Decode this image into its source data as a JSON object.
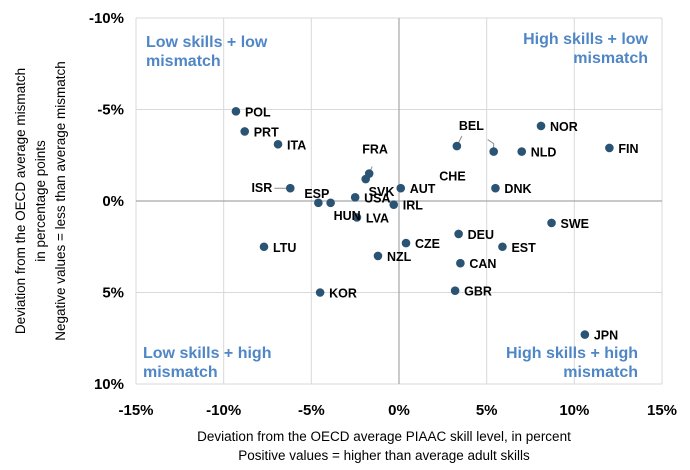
{
  "chart_data": {
    "type": "scatter",
    "title": "",
    "xlabel": [
      "Deviation from the OECD average PIAAC skill level, in percent",
      "Positive values = higher than average adult skills"
    ],
    "ylabel": [
      "Deviation from the OECD average mismatch",
      "in percentage points",
      "Negative values = less  than average mismatch"
    ],
    "xlim": [
      -15,
      15
    ],
    "ylim": [
      -10,
      10
    ],
    "y_inverted": true,
    "grid": true,
    "x_ticks": [
      {
        "value": -15,
        "label": "-15%"
      },
      {
        "value": -10,
        "label": "-10%"
      },
      {
        "value": -5,
        "label": "-5%"
      },
      {
        "value": 0,
        "label": "0%"
      },
      {
        "value": 5,
        "label": "5%"
      },
      {
        "value": 10,
        "label": "10%"
      },
      {
        "value": 15,
        "label": "15%"
      }
    ],
    "y_ticks": [
      {
        "value": -10,
        "label": "-10%"
      },
      {
        "value": -5,
        "label": "-5%"
      },
      {
        "value": 0,
        "label": "0%"
      },
      {
        "value": 5,
        "label": "5%"
      },
      {
        "value": 10,
        "label": "10%"
      }
    ],
    "quadrant_labels": {
      "top_left": [
        "Low skills + low",
        "mismatch"
      ],
      "top_right": [
        "High skills + low",
        "mismatch"
      ],
      "bottom_left": [
        "Low skills + high",
        "mismatch"
      ],
      "bottom_right": [
        "High skills + high",
        "mismatch"
      ]
    },
    "marker_color": "#2b5474",
    "quadrant_color": "#4f86c6",
    "points": [
      {
        "label": "POL",
        "x": -9.3,
        "y": -4.9,
        "pos": "right"
      },
      {
        "label": "PRT",
        "x": -8.8,
        "y": -3.8,
        "pos": "right"
      },
      {
        "label": "ITA",
        "x": -6.9,
        "y": -3.1,
        "pos": "right"
      },
      {
        "label": "ISR",
        "x": -6.2,
        "y": -0.7,
        "pos": "leader-left"
      },
      {
        "label": "ESP",
        "x": -4.6,
        "y": 0.1,
        "pos": "up-right"
      },
      {
        "label": "LTU",
        "x": -7.7,
        "y": 2.5,
        "pos": "right"
      },
      {
        "label": "KOR",
        "x": -4.5,
        "y": 5.0,
        "pos": "right"
      },
      {
        "label": "FRA",
        "x": -1.7,
        "y": -1.5,
        "pos": "leader-up"
      },
      {
        "label": "SVK",
        "x": -1.9,
        "y": -1.2,
        "pos": "below-right"
      },
      {
        "label": "USA",
        "x": -2.5,
        "y": -0.2,
        "pos": "right"
      },
      {
        "label": "HUN",
        "x": -3.9,
        "y": 0.1,
        "pos": "below-right"
      },
      {
        "label": "LVA",
        "x": -2.4,
        "y": 0.9,
        "pos": "right"
      },
      {
        "label": "IRL",
        "x": -0.3,
        "y": 0.2,
        "pos": "right"
      },
      {
        "label": "AUT",
        "x": 0.1,
        "y": -0.7,
        "pos": "right"
      },
      {
        "label": "CZE",
        "x": 0.4,
        "y": 2.3,
        "pos": "right"
      },
      {
        "label": "NZL",
        "x": -1.2,
        "y": 3.0,
        "pos": "right"
      },
      {
        "label": "BEL",
        "x": 3.3,
        "y": -3.0,
        "pos": "leader-up-right"
      },
      {
        "label": "CHE",
        "x": 5.4,
        "y": -2.7,
        "pos": "leader-left"
      },
      {
        "label": "NOR",
        "x": 8.1,
        "y": -4.1,
        "pos": "right"
      },
      {
        "label": "NLD",
        "x": 7.0,
        "y": -2.7,
        "pos": "right"
      },
      {
        "label": "FIN",
        "x": 12.0,
        "y": -2.9,
        "pos": "right"
      },
      {
        "label": "DNK",
        "x": 5.5,
        "y": -0.7,
        "pos": "right"
      },
      {
        "label": "SWE",
        "x": 8.7,
        "y": 1.2,
        "pos": "right"
      },
      {
        "label": "DEU",
        "x": 3.4,
        "y": 1.8,
        "pos": "right"
      },
      {
        "label": "EST",
        "x": 5.9,
        "y": 2.5,
        "pos": "right"
      },
      {
        "label": "CAN",
        "x": 3.5,
        "y": 3.4,
        "pos": "right"
      },
      {
        "label": "GBR",
        "x": 3.2,
        "y": 4.9,
        "pos": "right"
      },
      {
        "label": "JPN",
        "x": 10.6,
        "y": 7.3,
        "pos": "right"
      }
    ]
  }
}
